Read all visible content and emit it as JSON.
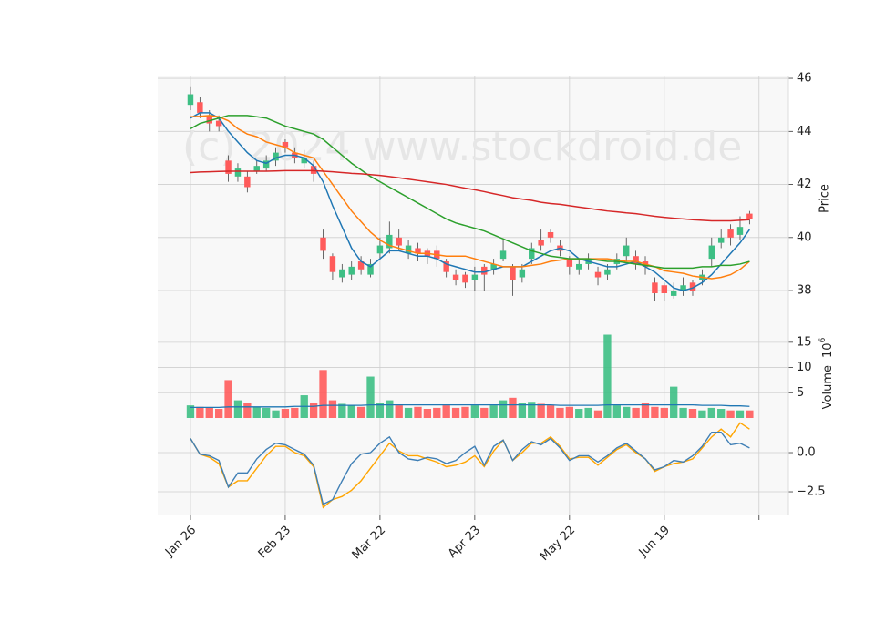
{
  "chart_data": {
    "type": "candlestick",
    "watermark": "(c) 2024 www.stockdroid.de",
    "up_color": "#3dbf84",
    "down_color": "#ff5b5b",
    "grid": true,
    "xlim": [
      -3.46,
      63.1
    ],
    "xticks": [
      {
        "value": 0,
        "label": "Jan 26"
      },
      {
        "value": 10,
        "label": "Feb 23"
      },
      {
        "value": 20,
        "label": "Mar 22"
      },
      {
        "value": 30,
        "label": "Apr 23"
      },
      {
        "value": 40,
        "label": "May 22"
      },
      {
        "value": 50,
        "label": "Jun 19"
      },
      {
        "value": 60,
        "label": null
      }
    ],
    "ylabel": "Price",
    "ylim": [
      36.87,
      46.07
    ],
    "yticks": [
      38,
      40,
      42,
      44,
      46
    ],
    "open": [
      45.0,
      45.1,
      44.6,
      44.4,
      42.9,
      42.3,
      42.3,
      42.5,
      42.6,
      42.9,
      43.6,
      43.2,
      42.8,
      42.7,
      40.0,
      39.3,
      38.5,
      38.6,
      39.1,
      38.6,
      39.4,
      39.6,
      40.0,
      39.4,
      39.6,
      39.5,
      39.5,
      39.1,
      38.6,
      38.6,
      38.4,
      38.9,
      38.8,
      39.2,
      38.9,
      38.5,
      39.2,
      39.9,
      40.2,
      39.7,
      39.2,
      38.8,
      39.0,
      38.7,
      38.6,
      39.0,
      39.3,
      39.3,
      39.1,
      38.3,
      38.2,
      37.8,
      38.0,
      38.3,
      38.4,
      39.2,
      39.8,
      40.3,
      40.1,
      40.9
    ],
    "high": [
      45.7,
      45.3,
      44.8,
      44.6,
      43.1,
      42.8,
      42.5,
      42.9,
      43.1,
      43.4,
      43.7,
      43.4,
      43.3,
      42.9,
      40.3,
      39.4,
      39.0,
      39.1,
      39.3,
      39.2,
      40.0,
      40.6,
      40.3,
      39.9,
      39.8,
      39.6,
      39.7,
      39.2,
      38.8,
      38.7,
      38.9,
      39.0,
      39.2,
      39.9,
      39.0,
      39.0,
      39.8,
      40.3,
      40.3,
      39.9,
      39.3,
      39.2,
      39.4,
      38.9,
      39.0,
      39.4,
      40.0,
      39.5,
      39.3,
      38.5,
      38.3,
      38.3,
      38.5,
      38.4,
      38.8,
      40.0,
      40.3,
      40.5,
      40.8,
      41.0
    ],
    "low": [
      44.8,
      44.5,
      44.0,
      44.0,
      42.1,
      42.1,
      41.7,
      42.4,
      42.5,
      42.7,
      43.2,
      42.8,
      42.6,
      42.1,
      39.2,
      38.4,
      38.3,
      38.4,
      38.6,
      38.5,
      39.2,
      39.4,
      39.5,
      39.2,
      39.1,
      39.0,
      38.9,
      38.5,
      38.2,
      38.1,
      38.0,
      38.0,
      38.6,
      39.1,
      37.8,
      38.3,
      39.0,
      39.5,
      39.8,
      39.3,
      38.6,
      38.6,
      38.8,
      38.2,
      38.4,
      38.8,
      39.1,
      38.8,
      38.6,
      37.6,
      37.6,
      37.7,
      37.8,
      37.8,
      38.2,
      38.9,
      39.6,
      39.7,
      39.9,
      40.5
    ],
    "close": [
      45.4,
      44.7,
      44.3,
      44.2,
      42.4,
      42.6,
      41.9,
      42.7,
      42.9,
      43.2,
      43.4,
      43.0,
      43.0,
      42.4,
      39.5,
      38.7,
      38.8,
      38.9,
      38.8,
      39.0,
      39.7,
      40.1,
      39.7,
      39.7,
      39.4,
      39.3,
      39.2,
      38.7,
      38.4,
      38.3,
      38.6,
      38.6,
      39.0,
      39.5,
      38.4,
      38.8,
      39.6,
      39.7,
      40.0,
      39.5,
      38.9,
      39.0,
      39.2,
      38.5,
      38.8,
      39.2,
      39.7,
      39.0,
      38.9,
      37.9,
      37.9,
      38.0,
      38.2,
      38.0,
      38.6,
      39.7,
      40.0,
      40.0,
      40.4,
      40.7
    ],
    "moving_averages": [
      {
        "color": "#1f77b4",
        "values": [
          44.5,
          44.7,
          44.7,
          44.5,
          44.0,
          43.6,
          43.2,
          42.9,
          42.8,
          43.0,
          43.1,
          43.1,
          43.0,
          42.7,
          42.1,
          41.2,
          40.4,
          39.6,
          39.1,
          38.9,
          39.2,
          39.5,
          39.5,
          39.4,
          39.3,
          39.3,
          39.2,
          39.0,
          38.9,
          38.8,
          38.7,
          38.7,
          38.8,
          38.9,
          38.9,
          38.9,
          39.1,
          39.3,
          39.5,
          39.6,
          39.5,
          39.2,
          39.1,
          39.0,
          38.9,
          38.9,
          39.0,
          39.1,
          38.9,
          38.7,
          38.4,
          38.1,
          38.0,
          38.1,
          38.3,
          38.6,
          39.0,
          39.4,
          39.8,
          40.3
        ]
      },
      {
        "color": "#ff7f0e",
        "values": [
          44.55,
          44.57,
          44.6,
          44.55,
          44.4,
          44.1,
          43.9,
          43.8,
          43.6,
          43.5,
          43.4,
          43.2,
          43.1,
          43.0,
          42.5,
          42.0,
          41.5,
          41.0,
          40.6,
          40.2,
          39.9,
          39.7,
          39.6,
          39.5,
          39.4,
          39.4,
          39.35,
          39.3,
          39.3,
          39.3,
          39.2,
          39.1,
          39.0,
          38.9,
          38.9,
          38.9,
          38.95,
          39.0,
          39.1,
          39.15,
          39.2,
          39.2,
          39.2,
          39.2,
          39.2,
          39.15,
          39.1,
          39.1,
          39.0,
          38.9,
          38.75,
          38.7,
          38.65,
          38.55,
          38.5,
          38.45,
          38.5,
          38.6,
          38.8,
          39.1
        ]
      },
      {
        "color": "#2ca02c",
        "values": [
          44.1,
          44.3,
          44.4,
          44.5,
          44.6,
          44.6,
          44.6,
          44.55,
          44.5,
          44.35,
          44.2,
          44.1,
          44.0,
          43.9,
          43.7,
          43.4,
          43.1,
          42.8,
          42.55,
          42.3,
          42.1,
          41.9,
          41.7,
          41.5,
          41.3,
          41.1,
          40.9,
          40.7,
          40.55,
          40.45,
          40.35,
          40.25,
          40.1,
          39.95,
          39.8,
          39.65,
          39.5,
          39.4,
          39.3,
          39.25,
          39.2,
          39.2,
          39.2,
          39.15,
          39.1,
          39.1,
          39.05,
          39.0,
          38.95,
          38.9,
          38.85,
          38.85,
          38.85,
          38.85,
          38.9,
          38.9,
          38.95,
          38.95,
          39.0,
          39.1
        ]
      },
      {
        "color": "#d62728",
        "values": [
          42.45,
          42.47,
          42.48,
          42.49,
          42.5,
          42.5,
          42.5,
          42.5,
          42.5,
          42.51,
          42.52,
          42.52,
          42.52,
          42.52,
          42.5,
          42.48,
          42.45,
          42.42,
          42.4,
          42.37,
          42.34,
          42.3,
          42.25,
          42.2,
          42.15,
          42.1,
          42.05,
          42.0,
          41.93,
          41.86,
          41.8,
          41.73,
          41.65,
          41.58,
          41.5,
          41.45,
          41.4,
          41.33,
          41.28,
          41.25,
          41.2,
          41.15,
          41.1,
          41.05,
          41.0,
          40.97,
          40.93,
          40.9,
          40.85,
          40.8,
          40.76,
          40.73,
          40.7,
          40.67,
          40.65,
          40.63,
          40.63,
          40.63,
          40.65,
          40.67
        ]
      }
    ],
    "volume": {
      "ylabel": "Volume",
      "scale_base": "10",
      "scale_exponent": "6",
      "ylim": [
        0,
        19.3
      ],
      "yticks": [
        5,
        10,
        15
      ],
      "values": [
        2.5,
        2.2,
        2.0,
        1.8,
        7.5,
        3.5,
        3.0,
        2.2,
        2.0,
        1.5,
        1.8,
        2.0,
        4.5,
        3.0,
        9.5,
        3.5,
        2.8,
        2.5,
        2.2,
        8.2,
        3.0,
        3.5,
        2.5,
        2.0,
        2.2,
        1.8,
        2.0,
        2.5,
        2.0,
        2.2,
        2.5,
        2.0,
        2.5,
        3.5,
        4.0,
        3.0,
        3.2,
        2.8,
        2.5,
        2.0,
        2.2,
        1.8,
        2.0,
        1.5,
        16.5,
        2.5,
        2.2,
        2.0,
        3.0,
        2.2,
        2.0,
        6.2,
        2.0,
        1.8,
        1.5,
        2.0,
        1.8,
        1.5,
        1.5,
        1.5
      ],
      "average": {
        "color": "#1f77b4",
        "values": [
          2.1,
          2.1,
          2.1,
          2.1,
          2.2,
          2.2,
          2.2,
          2.2,
          2.2,
          2.2,
          2.2,
          2.3,
          2.3,
          2.3,
          2.5,
          2.5,
          2.5,
          2.5,
          2.5,
          2.6,
          2.6,
          2.6,
          2.6,
          2.6,
          2.6,
          2.6,
          2.6,
          2.6,
          2.6,
          2.6,
          2.6,
          2.6,
          2.6,
          2.6,
          2.6,
          2.6,
          2.6,
          2.6,
          2.6,
          2.5,
          2.5,
          2.5,
          2.5,
          2.5,
          2.6,
          2.6,
          2.6,
          2.6,
          2.6,
          2.6,
          2.6,
          2.6,
          2.6,
          2.6,
          2.5,
          2.5,
          2.5,
          2.4,
          2.4,
          2.3
        ]
      }
    },
    "macd": {
      "ylim": [
        -4.01,
        2.21
      ],
      "yticks": [
        {
          "value": -2.5,
          "label": "−2.5"
        },
        {
          "value": 0,
          "label": "0.0"
        }
      ],
      "series": [
        {
          "color": "#ffa500",
          "values": [
            0.9,
            -0.1,
            -0.3,
            -0.7,
            -2.2,
            -1.8,
            -1.8,
            -1.0,
            -0.2,
            0.4,
            0.4,
            0.0,
            -0.2,
            -0.9,
            -3.5,
            -3.0,
            -2.8,
            -2.4,
            -1.8,
            -1.0,
            -0.2,
            0.6,
            0.1,
            -0.2,
            -0.2,
            -0.4,
            -0.6,
            -0.9,
            -0.8,
            -0.6,
            -0.2,
            -0.9,
            0.1,
            0.8,
            -0.5,
            0.0,
            0.6,
            0.6,
            1.0,
            0.4,
            -0.4,
            -0.3,
            -0.3,
            -0.8,
            -0.3,
            0.2,
            0.5,
            0.0,
            -0.4,
            -1.2,
            -0.9,
            -0.7,
            -0.6,
            -0.4,
            0.3,
            1.0,
            1.5,
            1.0,
            1.9,
            1.5
          ]
        },
        {
          "color": "#3f7fb5",
          "values": [
            0.9,
            -0.1,
            -0.2,
            -0.5,
            -2.2,
            -1.3,
            -1.3,
            -0.4,
            0.2,
            0.6,
            0.5,
            0.2,
            -0.1,
            -0.8,
            -3.3,
            -3.0,
            -1.8,
            -0.7,
            -0.1,
            0.0,
            0.6,
            1.0,
            0.0,
            -0.4,
            -0.5,
            -0.3,
            -0.4,
            -0.7,
            -0.5,
            0.0,
            0.4,
            -0.8,
            0.4,
            0.8,
            -0.5,
            0.2,
            0.7,
            0.5,
            0.9,
            0.3,
            -0.5,
            -0.2,
            -0.2,
            -0.6,
            -0.2,
            0.3,
            0.6,
            0.1,
            -0.4,
            -1.1,
            -0.9,
            -0.5,
            -0.6,
            -0.2,
            0.4,
            1.3,
            1.3,
            0.5,
            0.6,
            0.3
          ]
        }
      ]
    }
  }
}
